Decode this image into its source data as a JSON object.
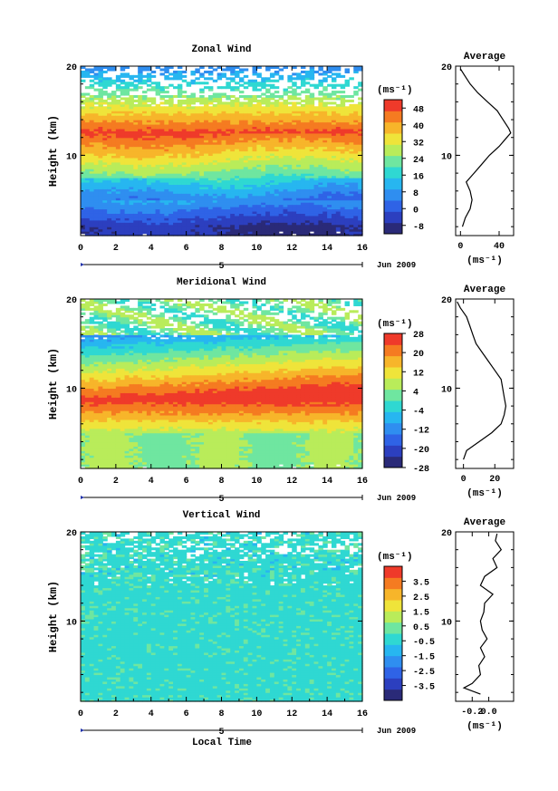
{
  "figure": {
    "xlabel": "Local Time",
    "date_label": "Jun 2009",
    "day_marker": "5"
  },
  "colormap": [
    "#2a2a78",
    "#2c3fbf",
    "#2f63e6",
    "#2f8ef0",
    "#27b6f0",
    "#2fd8d2",
    "#6fe6a0",
    "#b9ec5a",
    "#efe43a",
    "#f7b52a",
    "#f57b21",
    "#ef3a2a"
  ],
  "chart_data": [
    {
      "type": "heatmap",
      "title": "Zonal Wind",
      "ylabel": "Height (km)",
      "xlim": [
        0,
        16
      ],
      "ylim": [
        1,
        20
      ],
      "xticks": [
        0,
        2,
        4,
        6,
        8,
        10,
        12,
        14,
        16
      ],
      "yticks": [
        10,
        20
      ],
      "colorbar": {
        "unit": "(ms⁻¹)",
        "min": -12,
        "max": 52,
        "ticks": [
          48,
          40,
          32,
          24,
          16,
          8,
          0,
          -8
        ]
      },
      "profile": {
        "title": "Average",
        "xlim": [
          -5,
          55
        ],
        "xticks": [
          0,
          40
        ],
        "xunit": "(ms⁻¹)",
        "points": [
          [
            2,
            2
          ],
          [
            3,
            5
          ],
          [
            4,
            10
          ],
          [
            5,
            12
          ],
          [
            6,
            10
          ],
          [
            7,
            6
          ],
          [
            8,
            14
          ],
          [
            9,
            22
          ],
          [
            10,
            30
          ],
          [
            11,
            40
          ],
          [
            12,
            48
          ],
          [
            12.5,
            52
          ],
          [
            13,
            50
          ],
          [
            14,
            44
          ],
          [
            15,
            38
          ],
          [
            16,
            28
          ],
          [
            17,
            18
          ],
          [
            18,
            10
          ],
          [
            19,
            4
          ],
          [
            19.7,
            0
          ]
        ]
      }
    },
    {
      "type": "heatmap",
      "title": "Meridional Wind",
      "ylabel": "Height (km)",
      "xlim": [
        0,
        16
      ],
      "ylim": [
        1,
        20
      ],
      "xticks": [
        0,
        2,
        4,
        6,
        8,
        10,
        12,
        14,
        16
      ],
      "yticks": [
        10,
        20
      ],
      "colorbar": {
        "unit": "(ms⁻¹)",
        "min": -28,
        "max": 28,
        "ticks": [
          28,
          20,
          12,
          4,
          -4,
          -12,
          -20,
          -28
        ]
      },
      "profile": {
        "title": "Average",
        "xlim": [
          -5,
          32
        ],
        "xticks": [
          0,
          20
        ],
        "xunit": "(ms⁻¹)",
        "points": [
          [
            2,
            0
          ],
          [
            3,
            2
          ],
          [
            4,
            10
          ],
          [
            5,
            18
          ],
          [
            6,
            24
          ],
          [
            7,
            26
          ],
          [
            8,
            27
          ],
          [
            9,
            26
          ],
          [
            10,
            25
          ],
          [
            11,
            24
          ],
          [
            12,
            20
          ],
          [
            13,
            16
          ],
          [
            14,
            12
          ],
          [
            15,
            8
          ],
          [
            16,
            6
          ],
          [
            17,
            4
          ],
          [
            18,
            2
          ],
          [
            19,
            -2
          ],
          [
            19.7,
            -4
          ]
        ]
      }
    },
    {
      "type": "heatmap",
      "title": "Vertical Wind",
      "ylabel": "Height (km)",
      "xlim": [
        0,
        16
      ],
      "ylim": [
        1,
        20
      ],
      "xticks": [
        0,
        2,
        4,
        6,
        8,
        10,
        12,
        14,
        16
      ],
      "yticks": [
        10,
        20
      ],
      "colorbar": {
        "unit": "(ms⁻¹)",
        "min": -4.5,
        "max": 4.5,
        "ticks": [
          3.5,
          2.5,
          1.5,
          0.5,
          -0.5,
          -1.5,
          -2.5,
          -3.5
        ]
      },
      "profile": {
        "title": "Average",
        "xlim": [
          -0.4,
          0.3
        ],
        "xticks": [
          -0.2,
          0.0
        ],
        "xtick_labels": [
          "-0.2",
          "0.0"
        ],
        "xunit": "(ms⁻¹)",
        "points": [
          [
            1.8,
            -0.1
          ],
          [
            2.5,
            -0.3
          ],
          [
            3,
            -0.2
          ],
          [
            4,
            -0.1
          ],
          [
            5,
            -0.12
          ],
          [
            6,
            -0.05
          ],
          [
            7,
            -0.1
          ],
          [
            8,
            -0.02
          ],
          [
            9,
            -0.08
          ],
          [
            10,
            -0.1
          ],
          [
            11,
            -0.06
          ],
          [
            12,
            -0.05
          ],
          [
            13,
            0.05
          ],
          [
            14,
            -0.1
          ],
          [
            15,
            -0.05
          ],
          [
            16,
            0.1
          ],
          [
            17,
            0.05
          ],
          [
            18,
            0.15
          ],
          [
            19,
            0.08
          ],
          [
            19.8,
            0.1
          ]
        ]
      }
    }
  ]
}
